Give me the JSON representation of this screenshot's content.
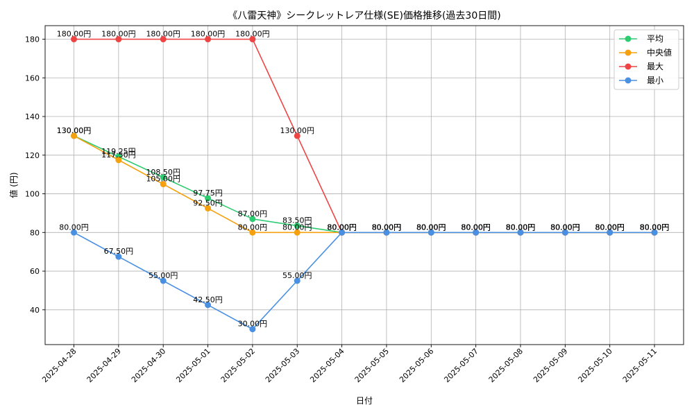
{
  "chart_data": {
    "type": "line",
    "title": "《八雷天神》シークレットレア仕様(SE)価格推移(過去30日間)",
    "xlabel": "日付",
    "ylabel": "値 (円)",
    "categories": [
      "2025-04-28",
      "2025-04-29",
      "2025-04-30",
      "2025-05-01",
      "2025-05-02",
      "2025-05-03",
      "2025-05-04",
      "2025-05-05",
      "2025-05-06",
      "2025-05-07",
      "2025-05-08",
      "2025-05-09",
      "2025-05-10",
      "2025-05-11"
    ],
    "ylim": [
      22,
      187
    ],
    "yticks": [
      40,
      60,
      80,
      100,
      120,
      140,
      160,
      180
    ],
    "grid": true,
    "legend_position": "top-right",
    "series": [
      {
        "name": "平均",
        "color": "#2ecc71",
        "values": [
          130,
          119.25,
          108.5,
          97.75,
          87,
          83.5,
          80,
          80,
          80,
          80,
          80,
          80,
          80,
          80
        ],
        "labels": [
          "130.00円",
          "119.25円",
          "108.50円",
          "97.75円",
          "87.00円",
          "83.50円",
          "80.00円",
          "80.00円",
          "80.00円",
          "80.00円",
          "80.00円",
          "80.00円",
          "80.00円",
          "80.00円"
        ]
      },
      {
        "name": "中央値",
        "color": "#f5a00c",
        "values": [
          130,
          117.5,
          105,
          92.5,
          80,
          80,
          80,
          80,
          80,
          80,
          80,
          80,
          80,
          80
        ],
        "labels": [
          "130.00円",
          "117.50円",
          "105.00円",
          "92.50円",
          "80.00円",
          "80.00円",
          "80.00円",
          "80.00円",
          "80.00円",
          "80.00円",
          "80.00円",
          "80.00円",
          "80.00円",
          "80.00円"
        ]
      },
      {
        "name": "最大",
        "color": "#ef4444",
        "values": [
          180,
          180,
          180,
          180,
          180,
          130,
          80,
          80,
          80,
          80,
          80,
          80,
          80,
          80
        ],
        "labels": [
          "180.00円",
          "180.00円",
          "180.00円",
          "180.00円",
          "180.00円",
          "130.00円",
          "80.00円",
          "80.00円",
          "80.00円",
          "80.00円",
          "80.00円",
          "80.00円",
          "80.00円",
          "80.00円"
        ]
      },
      {
        "name": "最小",
        "color": "#4a90e2",
        "values": [
          80,
          67.5,
          55,
          42.5,
          30,
          55,
          80,
          80,
          80,
          80,
          80,
          80,
          80,
          80
        ],
        "labels": [
          "80.00円",
          "67.50円",
          "55.00円",
          "42.50円",
          "30.00円",
          "55.00円",
          "80.00円",
          "80.00円",
          "80.00円",
          "80.00円",
          "80.00円",
          "80.00円",
          "80.00円",
          "80.00円"
        ]
      }
    ]
  }
}
